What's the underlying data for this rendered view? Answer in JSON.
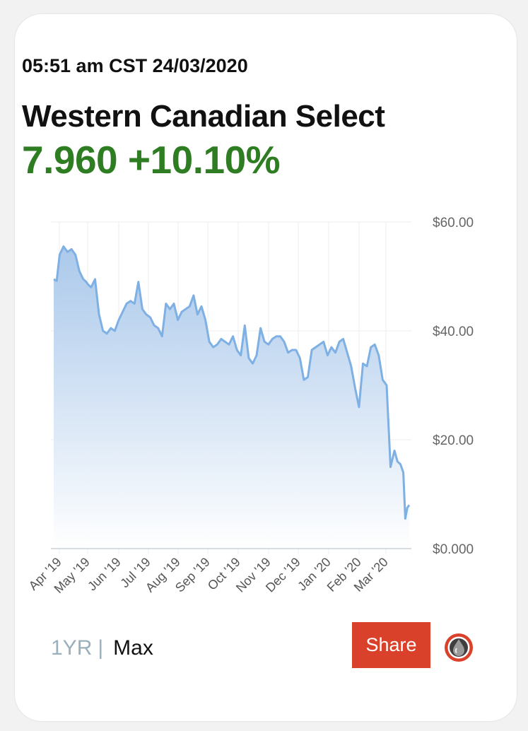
{
  "header": {
    "timestamp": "05:51 am CST 24/03/2020",
    "title": "Western Canadian Select",
    "price": "7.960",
    "change": "+10.10%"
  },
  "controls": {
    "range_1yr": "1YR",
    "range_sep": "|",
    "range_max": "Max",
    "share_label": "Share"
  },
  "colors": {
    "positive": "#2e7d22",
    "line": "#7fb0e4",
    "fill_top": "#a7c6ea",
    "share_bg": "#d9412b"
  },
  "icons": {
    "brand": "oil-drop-icon"
  },
  "chart_data": {
    "type": "area",
    "title": "",
    "xlabel": "",
    "ylabel": "",
    "ylim": [
      0,
      60
    ],
    "y_ticks": [
      0,
      20,
      40,
      60
    ],
    "y_tick_labels": [
      "$0.000",
      "$20.00",
      "$40.00",
      "$60.00"
    ],
    "x_tick_labels": [
      "Apr '19",
      "May '19",
      "Jun '19",
      "Jul '19",
      "Aug '19",
      "Sep '19",
      "Oct '19",
      "Nov '19",
      "Dec '19",
      "Jan '20",
      "Feb '20",
      "Mar '20"
    ],
    "grid": true,
    "series": [
      {
        "x": [
          "2019-03-29",
          "2019-04-01",
          "2019-04-04",
          "2019-04-08",
          "2019-04-12",
          "2019-04-16",
          "2019-04-20",
          "2019-04-24",
          "2019-04-28",
          "2019-05-01",
          "2019-05-03",
          "2019-05-06",
          "2019-05-10",
          "2019-05-14",
          "2019-05-18",
          "2019-05-22",
          "2019-05-26",
          "2019-05-30",
          "2019-06-03",
          "2019-06-07",
          "2019-06-11",
          "2019-06-15",
          "2019-06-19",
          "2019-06-23",
          "2019-06-27",
          "2019-07-01",
          "2019-07-05",
          "2019-07-09",
          "2019-07-13",
          "2019-07-17",
          "2019-07-21",
          "2019-07-25",
          "2019-07-29",
          "2019-08-02",
          "2019-08-06",
          "2019-08-10",
          "2019-08-14",
          "2019-08-18",
          "2019-08-22",
          "2019-08-26",
          "2019-08-30",
          "2019-09-03",
          "2019-09-07",
          "2019-09-11",
          "2019-09-15",
          "2019-09-19",
          "2019-09-23",
          "2019-09-27",
          "2019-10-01",
          "2019-10-05",
          "2019-10-09",
          "2019-10-13",
          "2019-10-17",
          "2019-10-21",
          "2019-10-25",
          "2019-10-29",
          "2019-11-02",
          "2019-11-06",
          "2019-11-10",
          "2019-11-14",
          "2019-11-18",
          "2019-11-22",
          "2019-11-26",
          "2019-11-30",
          "2019-12-04",
          "2019-12-08",
          "2019-12-12",
          "2019-12-16",
          "2019-12-20",
          "2019-12-24",
          "2019-12-28",
          "2020-01-01",
          "2020-01-05",
          "2020-01-09",
          "2020-01-13",
          "2020-01-17",
          "2020-01-21",
          "2020-01-25",
          "2020-01-29",
          "2020-02-02",
          "2020-02-06",
          "2020-02-10",
          "2020-02-14",
          "2020-02-18",
          "2020-02-22",
          "2020-02-26",
          "2020-03-01",
          "2020-03-05",
          "2020-03-09",
          "2020-03-12",
          "2020-03-15",
          "2020-03-18",
          "2020-03-20",
          "2020-03-22",
          "2020-03-24"
        ],
        "values": [
          49.5,
          49.2,
          54.0,
          55.5,
          54.5,
          55.0,
          54.0,
          51.0,
          49.5,
          49.0,
          48.5,
          48.0,
          49.5,
          43.0,
          40.0,
          39.5,
          40.5,
          40.0,
          42.0,
          43.5,
          45.0,
          45.5,
          45.0,
          49.0,
          44.0,
          43.0,
          42.5,
          41.0,
          40.5,
          39.0,
          45.0,
          44.0,
          45.0,
          42.0,
          43.5,
          44.0,
          44.5,
          46.5,
          43.0,
          44.5,
          42.0,
          38.0,
          37.0,
          37.5,
          38.5,
          38.0,
          37.5,
          39.0,
          36.5,
          35.5,
          41.0,
          35.0,
          34.0,
          35.5,
          40.5,
          38.0,
          37.5,
          38.5,
          39.0,
          39.0,
          38.0,
          36.0,
          36.5,
          36.5,
          35.0,
          31.0,
          31.5,
          36.5,
          37.0,
          37.5,
          38.0,
          35.5,
          37.0,
          36.0,
          38.0,
          38.5,
          36.0,
          33.5,
          29.5,
          26.0,
          34.0,
          33.5,
          37.0,
          37.5,
          35.5,
          31.0,
          30.0,
          15.0,
          18.0,
          16.0,
          15.5,
          14.0,
          5.5,
          7.5,
          8.0
        ]
      }
    ]
  }
}
